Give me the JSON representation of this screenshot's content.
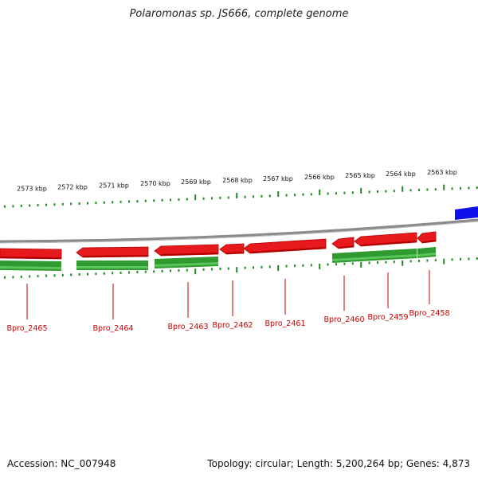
{
  "title": "Polaromonas sp. JS666, complete genome",
  "accession": "Accession: NC_007948",
  "summary": "Topology: circular; Length: 5,200,264 bp; Genes: 4,873",
  "colors": {
    "backbone": "#8a8a8a",
    "gene_fill": "#e8191c",
    "gene_dark": "#b50000",
    "cds": "#2f9a2f",
    "cds_light": "#59c559",
    "other_feature": "#1010ee",
    "label": "#cc0000",
    "ticks": "#228822"
  },
  "scale_labels": [
    "2573 kbp",
    "2572 kbp",
    "2571 kbp",
    "2570 kbp",
    "2569 kbp",
    "2568 kbp",
    "2567 kbp",
    "2566 kbp",
    "2565 kbp",
    "2564 kbp",
    "2563 kbp"
  ],
  "genes": [
    {
      "name": "Bpro_2465",
      "strand": "-"
    },
    {
      "name": "Bpro_2464",
      "strand": "-"
    },
    {
      "name": "Bpro_2463",
      "strand": "-"
    },
    {
      "name": "Bpro_2462",
      "strand": "-"
    },
    {
      "name": "Bpro_2461",
      "strand": "-"
    },
    {
      "name": "Bpro_2460",
      "strand": "-"
    },
    {
      "name": "Bpro_2459",
      "strand": "-"
    },
    {
      "name": "Bpro_2458",
      "strand": "-"
    }
  ]
}
